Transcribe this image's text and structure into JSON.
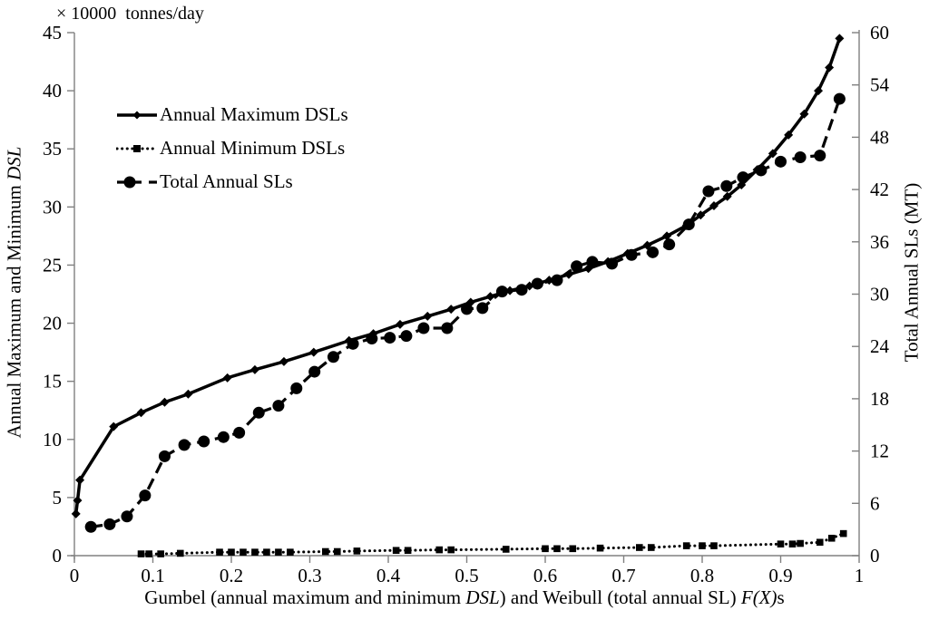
{
  "figure": {
    "unit_label": "× 10000  tonnes/day",
    "left_axis_title_segments": [
      {
        "t": "Annual Maximum and Minimum "
      },
      {
        "t": "DSL",
        "i": true
      }
    ],
    "right_axis_title": "Total Annual SLs (MT)",
    "x_axis_title_segments": [
      {
        "t": "Gumbel (annual maximum and minimum "
      },
      {
        "t": "DSL",
        "i": true
      },
      {
        "t": ") and Weibull (total annual SL) "
      },
      {
        "t": "F(X)",
        "i": true
      },
      {
        "t": "s"
      }
    ],
    "colors": {
      "series": "#000000",
      "axis": "#808080",
      "text": "#000000"
    }
  },
  "chart_data": {
    "type": "line",
    "title": "",
    "grid": false,
    "legend_position": "upper-left-inside",
    "x_axis": {
      "label": "Gumbel (annual maximum and minimum DSL) and Weibull (total annual SL) F(X)s",
      "range": [
        0,
        1
      ],
      "ticks": [
        "0",
        "0.1",
        "0.2",
        "0.3",
        "0.4",
        "0.5",
        "0.6",
        "0.7",
        "0.8",
        "0.9",
        "1"
      ]
    },
    "left_axis": {
      "label": "Annual Maximum and Minimum DSL",
      "unit": "× 10000 tonnes/day",
      "range": [
        0,
        45
      ],
      "ticks": [
        "0",
        "5",
        "10",
        "15",
        "20",
        "25",
        "30",
        "35",
        "40",
        "45"
      ]
    },
    "right_axis": {
      "label": "Total Annual SLs (MT)",
      "range": [
        0,
        60
      ],
      "ticks": [
        "0",
        "6",
        "12",
        "18",
        "24",
        "30",
        "36",
        "42",
        "48",
        "54",
        "60"
      ]
    },
    "series": [
      {
        "name": "Annual Minimum DSLs",
        "axis": "left",
        "line": "dotted",
        "marker": "square",
        "points": [
          [
            0.085,
            0.15
          ],
          [
            0.095,
            0.15
          ],
          [
            0.11,
            0.15
          ],
          [
            0.135,
            0.2
          ],
          [
            0.185,
            0.3
          ],
          [
            0.2,
            0.3
          ],
          [
            0.215,
            0.3
          ],
          [
            0.23,
            0.3
          ],
          [
            0.245,
            0.3
          ],
          [
            0.26,
            0.3
          ],
          [
            0.275,
            0.3
          ],
          [
            0.32,
            0.35
          ],
          [
            0.335,
            0.35
          ],
          [
            0.36,
            0.4
          ],
          [
            0.41,
            0.45
          ],
          [
            0.425,
            0.45
          ],
          [
            0.465,
            0.5
          ],
          [
            0.48,
            0.5
          ],
          [
            0.55,
            0.55
          ],
          [
            0.6,
            0.6
          ],
          [
            0.615,
            0.6
          ],
          [
            0.635,
            0.6
          ],
          [
            0.67,
            0.65
          ],
          [
            0.72,
            0.7
          ],
          [
            0.735,
            0.7
          ],
          [
            0.78,
            0.85
          ],
          [
            0.8,
            0.85
          ],
          [
            0.815,
            0.85
          ],
          [
            0.9,
            1.0
          ],
          [
            0.915,
            1.0
          ],
          [
            0.925,
            1.05
          ],
          [
            0.95,
            1.15
          ],
          [
            0.965,
            1.5
          ],
          [
            0.98,
            1.9
          ]
        ]
      },
      {
        "name": "Annual Maximum DSLs",
        "axis": "left",
        "line": "solid",
        "marker": "diamond",
        "points": [
          [
            0.002,
            3.6
          ],
          [
            0.004,
            4.75
          ],
          [
            0.007,
            6.5
          ],
          [
            0.05,
            11.1
          ],
          [
            0.085,
            12.3
          ],
          [
            0.115,
            13.2
          ],
          [
            0.145,
            13.9
          ],
          [
            0.195,
            15.3
          ],
          [
            0.23,
            16.0
          ],
          [
            0.267,
            16.7
          ],
          [
            0.305,
            17.5
          ],
          [
            0.35,
            18.5
          ],
          [
            0.381,
            19.1
          ],
          [
            0.415,
            19.9
          ],
          [
            0.45,
            20.6
          ],
          [
            0.48,
            21.2
          ],
          [
            0.505,
            21.8
          ],
          [
            0.53,
            22.3
          ],
          [
            0.555,
            22.8
          ],
          [
            0.58,
            23.2
          ],
          [
            0.605,
            23.7
          ],
          [
            0.63,
            24.2
          ],
          [
            0.655,
            24.7
          ],
          [
            0.68,
            25.3
          ],
          [
            0.705,
            26.0
          ],
          [
            0.73,
            26.7
          ],
          [
            0.755,
            27.5
          ],
          [
            0.78,
            28.4
          ],
          [
            0.798,
            29.3
          ],
          [
            0.815,
            30.1
          ],
          [
            0.832,
            30.9
          ],
          [
            0.85,
            31.9
          ],
          [
            0.87,
            33.2
          ],
          [
            0.89,
            34.6
          ],
          [
            0.91,
            36.2
          ],
          [
            0.93,
            38.0
          ],
          [
            0.948,
            40.0
          ],
          [
            0.962,
            42.0
          ],
          [
            0.975,
            44.5
          ]
        ]
      },
      {
        "name": "Total Annual SLs",
        "axis": "right",
        "line": "dashed",
        "marker": "circle",
        "points": [
          [
            0.021,
            3.3
          ],
          [
            0.045,
            3.6
          ],
          [
            0.067,
            4.5
          ],
          [
            0.09,
            6.9
          ],
          [
            0.115,
            11.4
          ],
          [
            0.14,
            12.7
          ],
          [
            0.165,
            13.1
          ],
          [
            0.19,
            13.6
          ],
          [
            0.21,
            14.1
          ],
          [
            0.235,
            16.4
          ],
          [
            0.26,
            17.2
          ],
          [
            0.283,
            19.2
          ],
          [
            0.306,
            21.1
          ],
          [
            0.33,
            22.8
          ],
          [
            0.355,
            24.3
          ],
          [
            0.379,
            24.9
          ],
          [
            0.402,
            25.0
          ],
          [
            0.423,
            25.2
          ],
          [
            0.445,
            26.1
          ],
          [
            0.475,
            26.1
          ],
          [
            0.5,
            28.3
          ],
          [
            0.52,
            28.4
          ],
          [
            0.545,
            30.3
          ],
          [
            0.57,
            30.5
          ],
          [
            0.59,
            31.2
          ],
          [
            0.615,
            31.6
          ],
          [
            0.64,
            33.2
          ],
          [
            0.66,
            33.7
          ],
          [
            0.685,
            33.5
          ],
          [
            0.71,
            34.5
          ],
          [
            0.737,
            34.8
          ],
          [
            0.758,
            35.7
          ],
          [
            0.783,
            38.0
          ],
          [
            0.808,
            41.8
          ],
          [
            0.831,
            42.4
          ],
          [
            0.852,
            43.4
          ],
          [
            0.875,
            44.2
          ],
          [
            0.9,
            45.2
          ],
          [
            0.925,
            45.7
          ],
          [
            0.95,
            45.9
          ],
          [
            0.975,
            52.4
          ]
        ]
      }
    ],
    "legend": [
      "Annual Maximum DSLs",
      "Annual Minimum DSLs",
      "Total Annual SLs"
    ]
  }
}
